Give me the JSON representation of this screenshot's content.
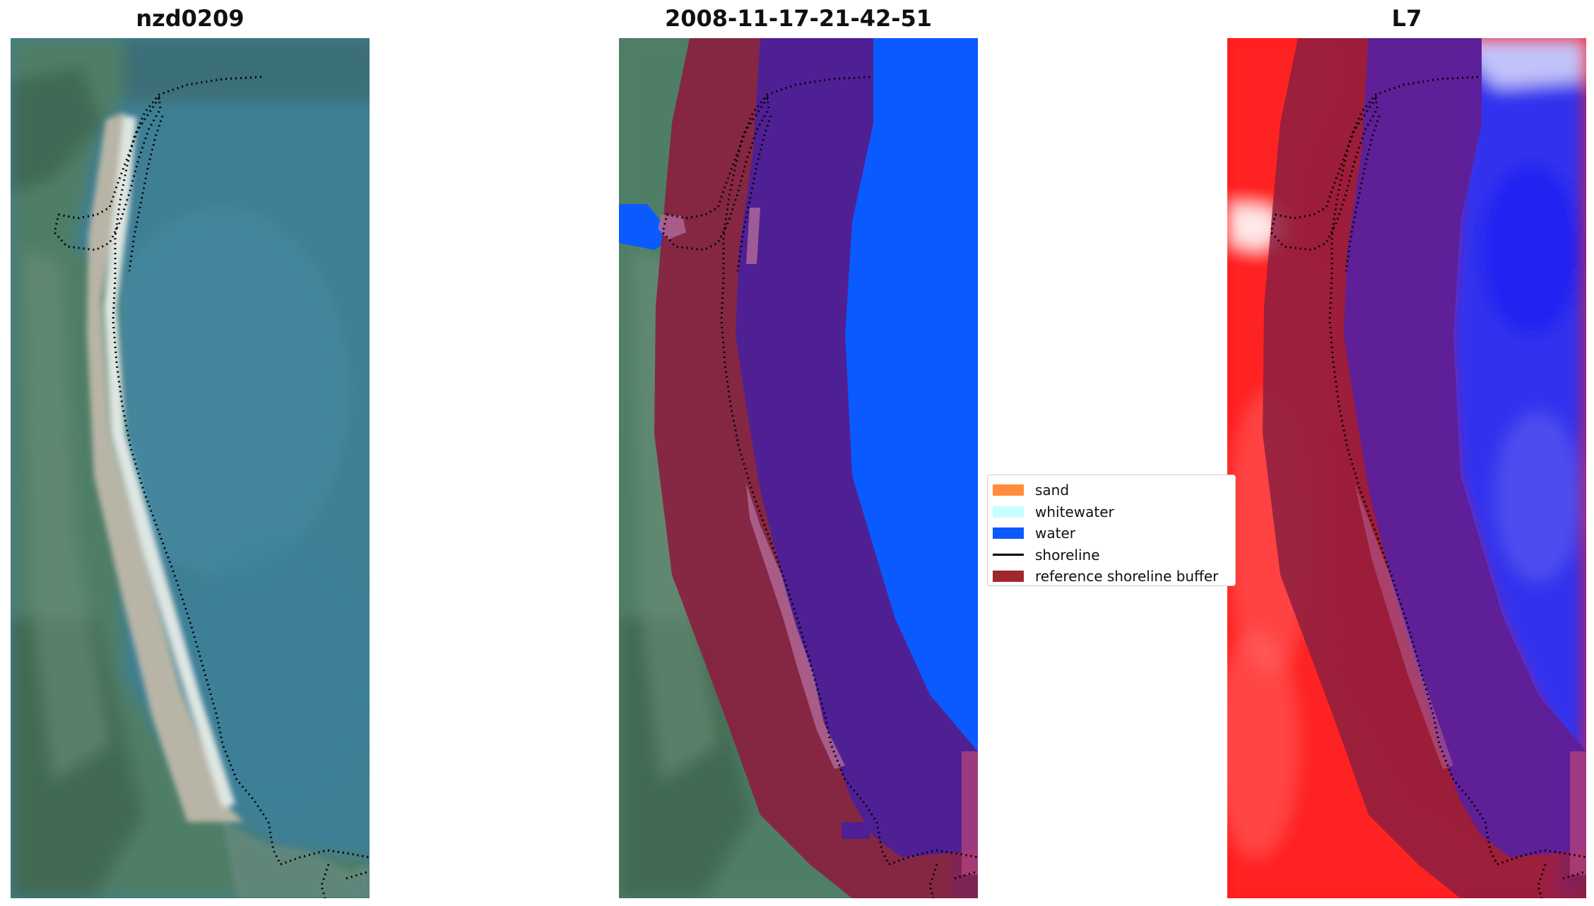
{
  "panels": [
    {
      "title": "nzd0209",
      "kind": "rgb"
    },
    {
      "title": "2008-11-17-21-42-51",
      "kind": "classified"
    },
    {
      "title": "L7",
      "kind": "index"
    }
  ],
  "legend": {
    "items": [
      {
        "label": "sand",
        "color": "#ff8c3c",
        "style": "patch"
      },
      {
        "label": "whitewater",
        "color": "#c8ffff",
        "style": "patch"
      },
      {
        "label": "water",
        "color": "#0a5aff",
        "style": "patch"
      },
      {
        "label": "shoreline",
        "color": "#000000",
        "style": "line"
      },
      {
        "label": "reference shoreline buffer",
        "color": "#a0282d",
        "style": "patch"
      }
    ]
  },
  "colors": {
    "land": "#4f7e66",
    "sea": "#3f7f95",
    "sand_beach": "#b7b3a6",
    "buffer": "#8b1e3f",
    "buffer_over_water": "#4f1f94",
    "water_class": "#0a5aff",
    "index_land": "#ff1a1a",
    "index_water": "#3232ee"
  }
}
